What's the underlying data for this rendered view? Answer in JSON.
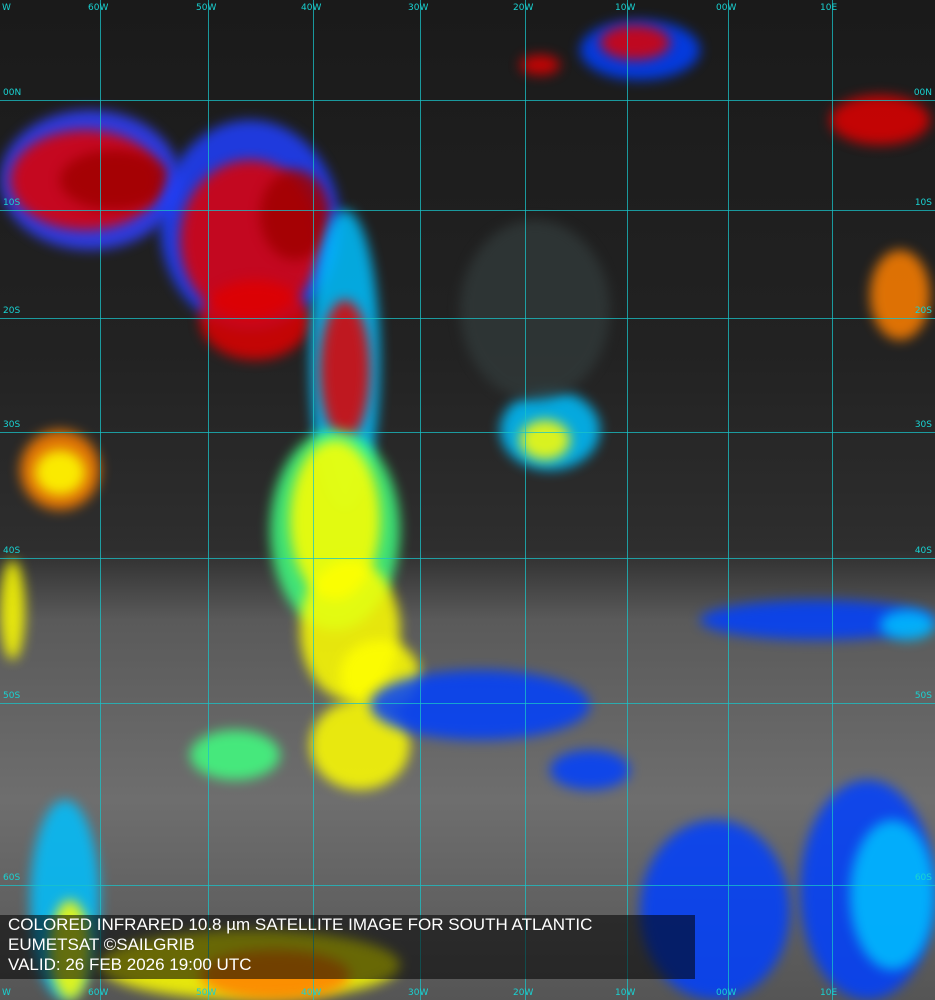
{
  "image": {
    "type": "colored infrared satellite image",
    "region": "South Atlantic",
    "grid_color": "#19c3c8",
    "palette": [
      "#000080",
      "#0040ff",
      "#00c0ff",
      "#40ff80",
      "#ffff00",
      "#ff8000",
      "#e00000",
      "#a00000"
    ]
  },
  "longitude_labels": [
    "60W",
    "50W",
    "40W",
    "30W",
    "20W",
    "10W",
    "00W",
    "10E"
  ],
  "longitude_edge_label": "W",
  "latitude_labels_left": [
    "00N",
    "10S",
    "20S",
    "30S",
    "40S",
    "50S",
    "60S"
  ],
  "latitude_labels_right": [
    "00N",
    "10S",
    "20S",
    "30S",
    "40S",
    "50S",
    "60S"
  ],
  "caption": {
    "line1": "COLORED INFRARED 10.8 µm SATELLITE IMAGE FOR SOUTH ATLANTIC",
    "line2": "EUMETSAT ©SAILGRIB",
    "line3": "VALID:  26 FEB 2026 19:00 UTC"
  }
}
